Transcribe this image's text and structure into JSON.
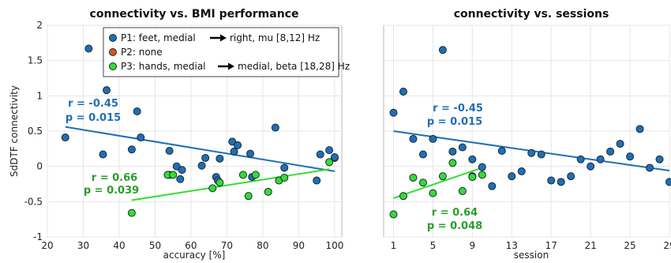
{
  "chart_data": [
    {
      "type": "scatter",
      "title": "connectivity vs. BMI performance",
      "xlabel": "accuracy [%]",
      "ylabel": "SdDTF connectivity",
      "xlim": [
        20,
        102
      ],
      "ylim": [
        -1,
        2
      ],
      "xticks": [
        "20",
        "30",
        "40",
        "50",
        "60",
        "70",
        "80",
        "90",
        "100"
      ],
      "yticks": [
        "-1",
        "-0.5",
        "0",
        "0.5",
        "1",
        "1.5",
        "2"
      ],
      "grid": true,
      "legend": {
        "position": "top-right",
        "entries": [
          {
            "label": "P1: feet, medial",
            "arrow": true,
            "label2": "right, mu [8,12] Hz",
            "color": "#1f6fb5"
          },
          {
            "label": "P2: none",
            "arrow": false,
            "label2": "",
            "color": "#d9541a"
          },
          {
            "label": "P3: hands, medial",
            "arrow": true,
            "label2": "medial, beta [18,28] Hz",
            "color": "#33dd33"
          }
        ]
      },
      "series": [
        {
          "color": "#1f6fb5",
          "points": [
            [
              25,
              0.41
            ],
            [
              31.5,
              1.67
            ],
            [
              35.5,
              0.17
            ],
            [
              36.5,
              1.08
            ],
            [
              43.5,
              0.24
            ],
            [
              45,
              0.78
            ],
            [
              46,
              0.41
            ],
            [
              54,
              0.22
            ],
            [
              54,
              -0.12
            ],
            [
              56,
              0.0
            ],
            [
              57,
              -0.18
            ],
            [
              57.5,
              -0.05
            ],
            [
              63,
              0.01
            ],
            [
              64,
              0.12
            ],
            [
              67,
              -0.15
            ],
            [
              67.5,
              -0.2
            ],
            [
              68,
              0.11
            ],
            [
              71.5,
              0.35
            ],
            [
              72,
              0.21
            ],
            [
              73,
              0.3
            ],
            [
              76.5,
              0.18
            ],
            [
              77,
              -0.15
            ],
            [
              83.5,
              0.55
            ],
            [
              86,
              -0.02
            ],
            [
              95,
              -0.2
            ],
            [
              96,
              0.17
            ],
            [
              98.5,
              0.23
            ],
            [
              100,
              0.12
            ],
            [
              100,
              0.13
            ]
          ],
          "fit": [
            [
              25,
              0.56
            ],
            [
              100,
              -0.07
            ]
          ],
          "r_label": "r = -0.45",
          "p_label": "p = 0.015"
        },
        {
          "color": "#33dd33",
          "points": [
            [
              43.5,
              -0.66
            ],
            [
              53.5,
              -0.12
            ],
            [
              55,
              -0.12
            ],
            [
              66,
              -0.31
            ],
            [
              68,
              -0.23
            ],
            [
              74.5,
              -0.12
            ],
            [
              76,
              -0.42
            ],
            [
              78,
              -0.12
            ],
            [
              81.5,
              -0.36
            ],
            [
              84.5,
              -0.2
            ],
            [
              86,
              -0.16
            ],
            [
              98.5,
              0.06
            ]
          ],
          "fit": [
            [
              43.5,
              -0.48
            ],
            [
              98.5,
              -0.04
            ]
          ],
          "r_label": "r = 0.66",
          "p_label": "p = 0.039"
        }
      ]
    },
    {
      "type": "scatter",
      "title": "connectivity vs. sessions",
      "xlabel": "session",
      "ylabel": "",
      "xlim": [
        0,
        29
      ],
      "ylim": [
        -1,
        2
      ],
      "xticks": [
        "1",
        "5",
        "9",
        "13",
        "17",
        "21",
        "25",
        "29"
      ],
      "grid": true,
      "series": [
        {
          "color": "#1f6fb5",
          "points": [
            [
              1,
              0.76
            ],
            [
              2,
              1.06
            ],
            [
              3,
              0.39
            ],
            [
              4,
              0.17
            ],
            [
              5,
              0.39
            ],
            [
              6,
              1.65
            ],
            [
              7,
              0.21
            ],
            [
              8,
              0.27
            ],
            [
              9,
              0.1
            ],
            [
              9,
              -0.14
            ],
            [
              10,
              -0.01
            ],
            [
              11,
              -0.28
            ],
            [
              12,
              0.22
            ],
            [
              13,
              -0.14
            ],
            [
              14,
              -0.07
            ],
            [
              15,
              0.19
            ],
            [
              16,
              0.17
            ],
            [
              17,
              -0.2
            ],
            [
              18,
              -0.22
            ],
            [
              19,
              -0.14
            ],
            [
              20,
              0.1
            ],
            [
              21,
              0.0
            ],
            [
              22,
              0.1
            ],
            [
              23,
              0.21
            ],
            [
              24,
              0.32
            ],
            [
              25,
              0.14
            ],
            [
              26,
              0.53
            ],
            [
              27,
              -0.02
            ],
            [
              28,
              0.1
            ],
            [
              29,
              -0.22
            ]
          ],
          "fit": [
            [
              1,
              0.5
            ],
            [
              29,
              -0.06
            ]
          ],
          "r_label": "r = -0.45",
          "p_label": "p = 0.015"
        },
        {
          "color": "#33dd33",
          "points": [
            [
              1,
              -0.68
            ],
            [
              2,
              -0.42
            ],
            [
              3,
              -0.16
            ],
            [
              4,
              -0.23
            ],
            [
              5,
              -0.38
            ],
            [
              6,
              -0.14
            ],
            [
              7,
              0.05
            ],
            [
              8,
              -0.35
            ],
            [
              9,
              -0.15
            ],
            [
              10,
              -0.12
            ]
          ],
          "fit": [
            [
              1,
              -0.45
            ],
            [
              10,
              -0.02
            ]
          ],
          "r_label": "r = 0.64",
          "p_label": "p = 0.048"
        }
      ]
    }
  ]
}
